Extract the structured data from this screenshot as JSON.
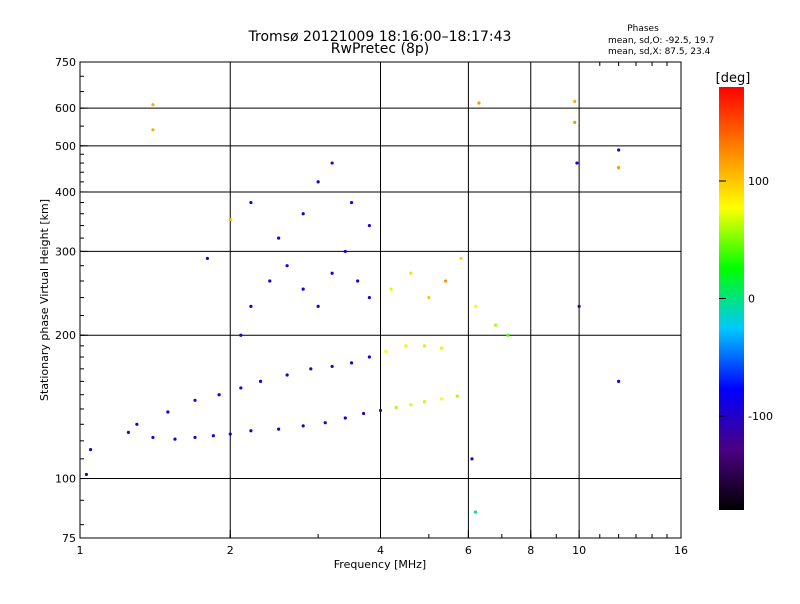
{
  "chart_data": {
    "type": "scatter",
    "title": "Tromsø 20121009 18:16:00–18:17:43",
    "subtitle": "RwPretec (8p)",
    "xlabel": "Frequency [MHz]",
    "ylabel": "Stationary phase Virtual Height [km]",
    "x_scale": "log",
    "y_scale": "log",
    "xlim": [
      1,
      16
    ],
    "ylim": [
      75,
      750
    ],
    "x_ticks": [
      {
        "value": 1,
        "label": "1"
      },
      {
        "value": 2,
        "label": "2"
      },
      {
        "value": 4,
        "label": "4"
      },
      {
        "value": 6,
        "label": "6"
      },
      {
        "value": 8,
        "label": "8"
      },
      {
        "value": 10,
        "label": "10"
      },
      {
        "value": 16,
        "label": "16"
      }
    ],
    "y_ticks": [
      {
        "value": 75,
        "label": "75"
      },
      {
        "value": 100,
        "label": "100"
      },
      {
        "value": 200,
        "label": "200"
      },
      {
        "value": 300,
        "label": "300"
      },
      {
        "value": 400,
        "label": "400"
      },
      {
        "value": 500,
        "label": "500"
      },
      {
        "value": 600,
        "label": "600"
      },
      {
        "value": 750,
        "label": "750"
      }
    ],
    "x_grid": [
      2,
      4,
      6,
      8,
      10
    ],
    "y_grid": [
      100,
      200,
      300,
      400,
      500,
      600
    ],
    "grid": true,
    "legend": {
      "title": "Phases",
      "lines": [
        "mean, sd,O: -92.5, 19.7",
        "mean, sd,X:  87.5, 23.4"
      ],
      "position": "top-right"
    },
    "colorbar": {
      "label": "[deg]",
      "range": [
        -180,
        180
      ],
      "ticks": [
        {
          "value": 100,
          "label": "100"
        },
        {
          "value": 0,
          "label": "0"
        },
        {
          "value": -100,
          "label": "-100"
        }
      ],
      "colors": [
        "#000000",
        "#4b0082",
        "#0000ff",
        "#00c8ff",
        "#00ff00",
        "#ffff00",
        "#ff8000",
        "#ff0000"
      ]
    },
    "series": [
      {
        "x": [
          1.05,
          1.25,
          1.4,
          1.55,
          1.7,
          1.85,
          2.0,
          2.2,
          2.5,
          2.8,
          3.1,
          3.4,
          3.7,
          4.0,
          4.3,
          4.6,
          4.9,
          5.3,
          5.7
        ],
        "y": [
          115,
          125,
          122,
          121,
          122,
          123,
          124,
          126,
          127,
          129,
          131,
          134,
          137,
          139,
          141,
          143,
          145,
          147,
          149
        ],
        "phase": [
          -100,
          -95,
          -98,
          -100,
          -97,
          -99,
          -96,
          -98,
          -100,
          -95,
          -97,
          -99,
          -110,
          -105,
          60,
          70,
          65,
          75,
          60
        ]
      },
      {
        "x": [
          1.3,
          1.5,
          1.7,
          1.9,
          2.1,
          2.3,
          2.6,
          2.9,
          3.2,
          3.5,
          3.8,
          4.1,
          4.5,
          4.9,
          5.3
        ],
        "y": [
          130,
          138,
          146,
          150,
          155,
          160,
          165,
          170,
          172,
          175,
          180,
          185,
          190,
          190,
          188
        ],
        "phase": [
          -95,
          -90,
          -100,
          -92,
          -98,
          -90,
          -95,
          -110,
          -100,
          -95,
          -92,
          80,
          85,
          90,
          70
        ]
      },
      {
        "x": [
          2.1,
          2.2,
          2.4,
          2.6,
          2.8,
          3.0,
          3.2,
          3.4,
          3.6,
          3.8,
          4.2,
          4.6,
          5.0,
          5.4,
          5.8,
          6.2,
          6.8,
          7.2
        ],
        "y": [
          200,
          230,
          260,
          280,
          250,
          230,
          270,
          300,
          260,
          240,
          250,
          270,
          240,
          260,
          290,
          230,
          210,
          200
        ],
        "phase": [
          -95,
          -88,
          -100,
          -90,
          -85,
          -105,
          -92,
          -90,
          -95,
          -98,
          70,
          90,
          100,
          120,
          95,
          75,
          60,
          40
        ]
      },
      {
        "x": [
          2.5,
          2.8,
          3.0,
          3.2,
          3.5,
          3.8,
          2.2,
          2.0,
          1.8
        ],
        "y": [
          320,
          360,
          420,
          460,
          380,
          340,
          380,
          350,
          290
        ],
        "phase": [
          -90,
          -100,
          -95,
          -110,
          -92,
          -88,
          -80,
          110,
          -95
        ]
      },
      {
        "x": [
          1.03,
          1.4,
          1.4,
          6.1,
          6.2,
          6.3,
          9.8,
          9.8,
          9.9,
          12.0,
          12.0,
          12.0,
          10.0
        ],
        "y": [
          102,
          540,
          610,
          110,
          85,
          615,
          560,
          620,
          460,
          490,
          450,
          160,
          230
        ],
        "phase": [
          -100,
          110,
          110,
          -100,
          0,
          120,
          120,
          110,
          -100,
          -100,
          120,
          -90,
          -120
        ]
      }
    ]
  }
}
